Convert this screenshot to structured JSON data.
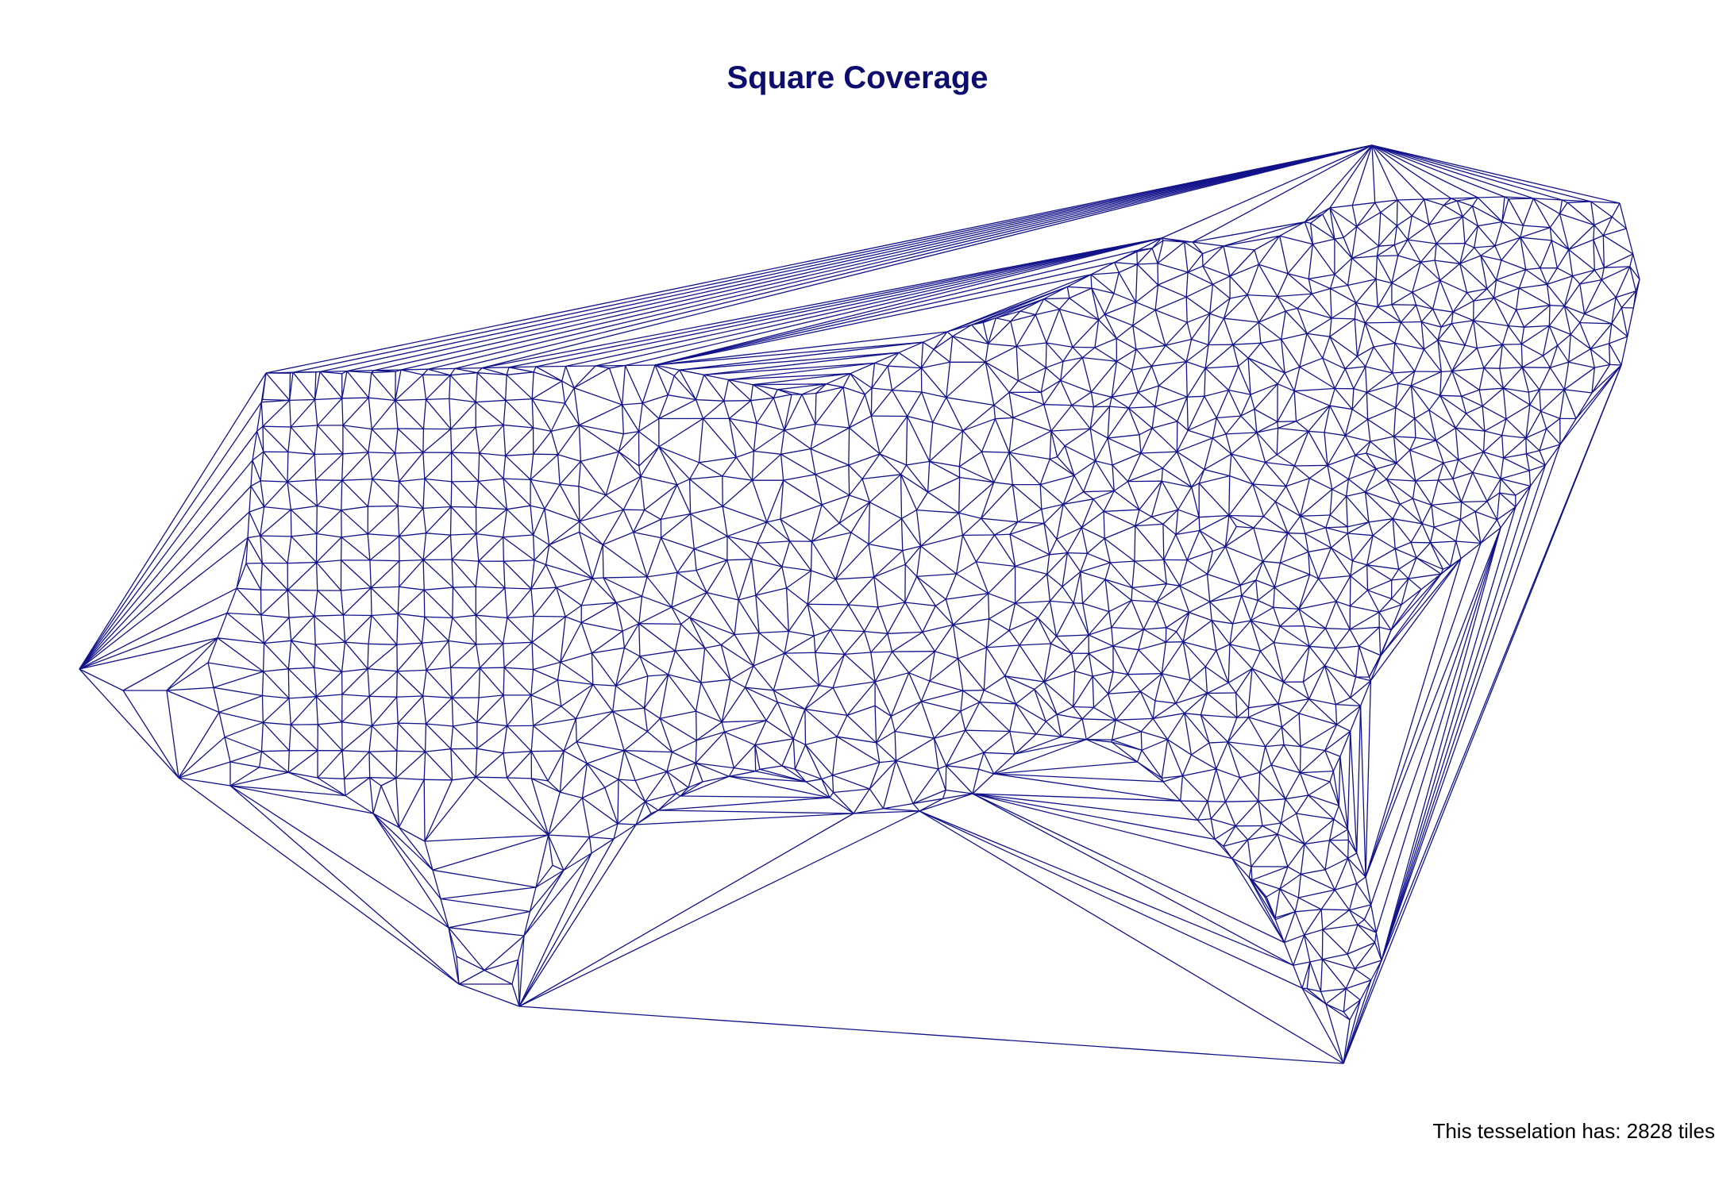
{
  "title": "Square Coverage",
  "caption": "This tesselation has: 2828 tiles",
  "diagram": {
    "type": "delaunay-triangulation",
    "line_color": "#12128a",
    "background": "#ffffff"
  }
}
